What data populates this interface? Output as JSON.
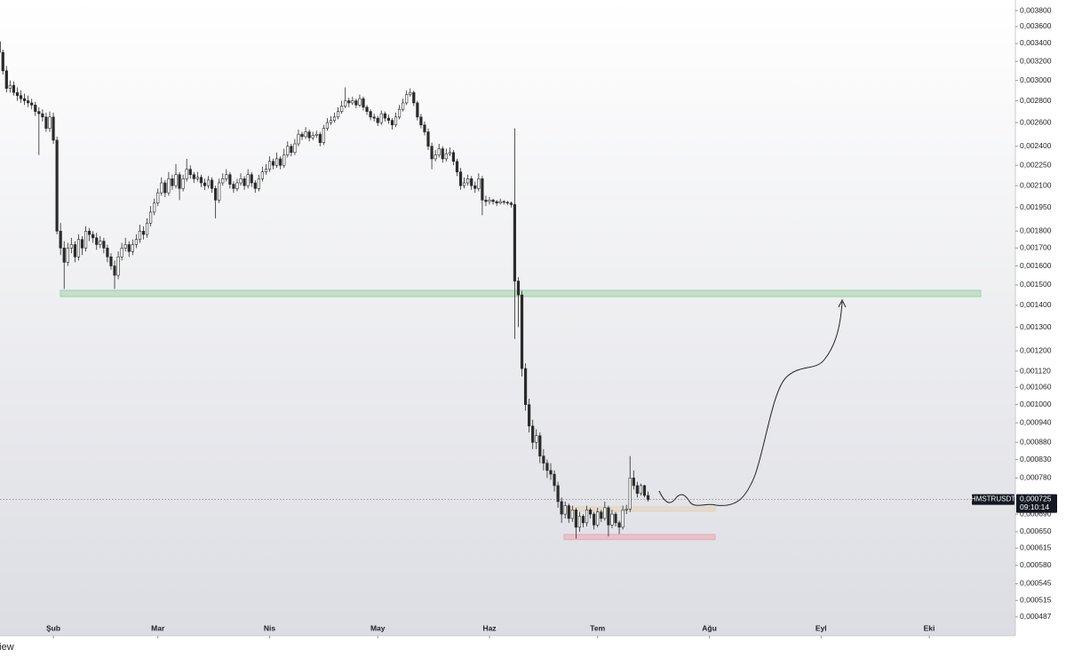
{
  "chart_data": {
    "type": "candlestick",
    "symbol": "HMSTRUSDT",
    "last_price": {
      "value": 0.000725,
      "label": "0,000725"
    },
    "countdown": "09:10:14",
    "footer_text": "View",
    "up_color": "#ffffff",
    "down_color": "#2a2a2a",
    "wick_color": "#2a2a2a",
    "log_scale": true,
    "grid": false,
    "xlim": [
      0.2,
      281.9
    ],
    "xticks": [
      {
        "value": 15,
        "label": "Şub"
      },
      {
        "value": 44,
        "label": "Mar"
      },
      {
        "value": 75,
        "label": "Nis"
      },
      {
        "value": 105,
        "label": "May"
      },
      {
        "value": 136,
        "label": "Haz"
      },
      {
        "value": 166,
        "label": "Tem"
      },
      {
        "value": 197,
        "label": "Ağu"
      },
      {
        "value": 228,
        "label": "Eyl"
      },
      {
        "value": 258,
        "label": "Eki"
      }
    ],
    "ylim": [
      0.000457,
      0.00394
    ],
    "yticks": [
      {
        "value": 0.0038,
        "label": "0,003800"
      },
      {
        "value": 0.0036,
        "label": "0,003600"
      },
      {
        "value": 0.0034,
        "label": "0,003400"
      },
      {
        "value": 0.0032,
        "label": "0,003200"
      },
      {
        "value": 0.003,
        "label": "0,003000"
      },
      {
        "value": 0.0028,
        "label": "0,002800"
      },
      {
        "value": 0.0026,
        "label": "0,002600"
      },
      {
        "value": 0.0024,
        "label": "0,002400"
      },
      {
        "value": 0.00225,
        "label": "0,002250"
      },
      {
        "value": 0.0021,
        "label": "0,002100"
      },
      {
        "value": 0.00195,
        "label": "0,001950"
      },
      {
        "value": 0.0018,
        "label": "0,001800"
      },
      {
        "value": 0.0017,
        "label": "0,001700"
      },
      {
        "value": 0.0016,
        "label": "0,001600"
      },
      {
        "value": 0.0015,
        "label": "0,001500"
      },
      {
        "value": 0.0014,
        "label": "0,001400"
      },
      {
        "value": 0.0013,
        "label": "0,001300"
      },
      {
        "value": 0.0012,
        "label": "0,001200"
      },
      {
        "value": 0.00112,
        "label": "0,001120"
      },
      {
        "value": 0.00106,
        "label": "0,001060"
      },
      {
        "value": 0.001,
        "label": "0,001000"
      },
      {
        "value": 0.00094,
        "label": "0,000940"
      },
      {
        "value": 0.00088,
        "label": "0,000880"
      },
      {
        "value": 0.00083,
        "label": "0,000830"
      },
      {
        "value": 0.00078,
        "label": "0,000780"
      },
      {
        "value": 0.00069,
        "label": "0,000690"
      },
      {
        "value": 0.00065,
        "label": "0,000650"
      },
      {
        "value": 0.000615,
        "label": "0,000615"
      },
      {
        "value": 0.00058,
        "label": "0,000580"
      },
      {
        "value": 0.000545,
        "label": "0,000545"
      },
      {
        "value": 0.000515,
        "label": "0,000515"
      },
      {
        "value": 0.000487,
        "label": "0,000487"
      }
    ],
    "zones": [
      {
        "low": 0.001442,
        "high": 0.001473,
        "color": "#9fd3a8"
      },
      {
        "low": 0.000697,
        "high": 0.000707,
        "color": "#e3d3b8"
      },
      {
        "low": 0.000633,
        "high": 0.000644,
        "color": "#e9a9b4"
      }
    ],
    "ohlc": [
      [
        0.00342,
        0.00346,
        0.00326,
        0.0033
      ],
      [
        0.0033,
        0.00333,
        0.00306,
        0.0031
      ],
      [
        0.0031,
        0.00315,
        0.00288,
        0.00292
      ],
      [
        0.00292,
        0.003,
        0.00288,
        0.00295
      ],
      [
        0.00295,
        0.00299,
        0.00285,
        0.00288
      ],
      [
        0.00288,
        0.00293,
        0.0028,
        0.00285
      ],
      [
        0.00285,
        0.0029,
        0.00278,
        0.00282
      ],
      [
        0.00282,
        0.00287,
        0.00276,
        0.0028
      ],
      [
        0.0028,
        0.00285,
        0.00274,
        0.00278
      ],
      [
        0.00278,
        0.00282,
        0.00272,
        0.00276
      ],
      [
        0.00276,
        0.00279,
        0.00266,
        0.0027
      ],
      [
        0.0027,
        0.00274,
        0.00233,
        0.00268
      ],
      [
        0.00268,
        0.00272,
        0.00261,
        0.00265
      ],
      [
        0.00265,
        0.00269,
        0.00252,
        0.00255
      ],
      [
        0.00255,
        0.0027,
        0.00252,
        0.00265
      ],
      [
        0.00265,
        0.00269,
        0.00242,
        0.00245
      ],
      [
        0.00245,
        0.00248,
        0.00178,
        0.0018
      ],
      [
        0.0018,
        0.00185,
        0.00166,
        0.0017
      ],
      [
        0.0017,
        0.00174,
        0.00148,
        0.00162
      ],
      [
        0.00162,
        0.00173,
        0.0016,
        0.0017
      ],
      [
        0.0017,
        0.00176,
        0.00167,
        0.00172
      ],
      [
        0.00172,
        0.00174,
        0.00162,
        0.00165
      ],
      [
        0.00165,
        0.00178,
        0.00163,
        0.00175
      ],
      [
        0.00175,
        0.00177,
        0.00166,
        0.0017
      ],
      [
        0.0017,
        0.00183,
        0.00168,
        0.0018
      ],
      [
        0.0018,
        0.00182,
        0.00174,
        0.00178
      ],
      [
        0.00178,
        0.0018,
        0.00173,
        0.00176
      ],
      [
        0.00176,
        0.00179,
        0.00169,
        0.00172
      ],
      [
        0.00172,
        0.00177,
        0.0017,
        0.00174
      ],
      [
        0.00174,
        0.00176,
        0.00167,
        0.0017
      ],
      [
        0.0017,
        0.00172,
        0.00162,
        0.00165
      ],
      [
        0.00165,
        0.00167,
        0.00158,
        0.0016
      ],
      [
        0.0016,
        0.00163,
        0.00148,
        0.00155
      ],
      [
        0.00155,
        0.00168,
        0.00153,
        0.00165
      ],
      [
        0.00165,
        0.00173,
        0.00163,
        0.0017
      ],
      [
        0.0017,
        0.00176,
        0.00168,
        0.00172
      ],
      [
        0.00172,
        0.00174,
        0.00165,
        0.00168
      ],
      [
        0.00168,
        0.00175,
        0.00166,
        0.00172
      ],
      [
        0.00172,
        0.00178,
        0.0017,
        0.00175
      ],
      [
        0.00175,
        0.00184,
        0.00173,
        0.0018
      ],
      [
        0.0018,
        0.00183,
        0.00175,
        0.00178
      ],
      [
        0.00178,
        0.00188,
        0.00176,
        0.00185
      ],
      [
        0.00185,
        0.00196,
        0.00183,
        0.00192
      ],
      [
        0.00192,
        0.00201,
        0.0019,
        0.00198
      ],
      [
        0.00198,
        0.00208,
        0.00196,
        0.00205
      ],
      [
        0.00205,
        0.00216,
        0.00203,
        0.00212
      ],
      [
        0.00212,
        0.00214,
        0.00202,
        0.00205
      ],
      [
        0.00205,
        0.0022,
        0.00203,
        0.00215
      ],
      [
        0.00215,
        0.00218,
        0.00207,
        0.0021
      ],
      [
        0.0021,
        0.00226,
        0.00208,
        0.00218
      ],
      [
        0.00218,
        0.0022,
        0.002,
        0.00208
      ],
      [
        0.00208,
        0.00218,
        0.00206,
        0.00215
      ],
      [
        0.00215,
        0.0023,
        0.00213,
        0.00222
      ],
      [
        0.00222,
        0.00225,
        0.00215,
        0.00218
      ],
      [
        0.00218,
        0.0022,
        0.00212,
        0.00215
      ],
      [
        0.00215,
        0.0022,
        0.00213,
        0.00216
      ],
      [
        0.00216,
        0.00218,
        0.00209,
        0.00212
      ],
      [
        0.00212,
        0.00215,
        0.00207,
        0.0021
      ],
      [
        0.0021,
        0.00217,
        0.00208,
        0.00214
      ],
      [
        0.00214,
        0.00216,
        0.00205,
        0.00208
      ],
      [
        0.00208,
        0.0021,
        0.00188,
        0.002
      ],
      [
        0.002,
        0.00215,
        0.00198,
        0.00212
      ],
      [
        0.00212,
        0.00219,
        0.0021,
        0.00215
      ],
      [
        0.00215,
        0.00222,
        0.00213,
        0.00218
      ],
      [
        0.00218,
        0.0022,
        0.00208,
        0.00211
      ],
      [
        0.00211,
        0.00213,
        0.00205,
        0.00208
      ],
      [
        0.00208,
        0.00215,
        0.00206,
        0.00212
      ],
      [
        0.00212,
        0.00219,
        0.0021,
        0.00215
      ],
      [
        0.00215,
        0.00217,
        0.00207,
        0.0021
      ],
      [
        0.0021,
        0.00222,
        0.00208,
        0.00218
      ],
      [
        0.00218,
        0.0022,
        0.00209,
        0.00212
      ],
      [
        0.00212,
        0.00214,
        0.00205,
        0.00208
      ],
      [
        0.00208,
        0.00218,
        0.00206,
        0.00215
      ],
      [
        0.00215,
        0.00224,
        0.00213,
        0.0022
      ],
      [
        0.0022,
        0.00226,
        0.00218,
        0.00222
      ],
      [
        0.00222,
        0.00232,
        0.0022,
        0.00228
      ],
      [
        0.00228,
        0.0023,
        0.00222,
        0.00225
      ],
      [
        0.00225,
        0.00235,
        0.00223,
        0.0023
      ],
      [
        0.0023,
        0.00232,
        0.00222,
        0.00225
      ],
      [
        0.00225,
        0.00238,
        0.00223,
        0.00233
      ],
      [
        0.00233,
        0.00244,
        0.00231,
        0.0024
      ],
      [
        0.0024,
        0.00242,
        0.00232,
        0.00235
      ],
      [
        0.00235,
        0.00246,
        0.00233,
        0.00242
      ],
      [
        0.00242,
        0.00254,
        0.0024,
        0.0025
      ],
      [
        0.0025,
        0.00252,
        0.00245,
        0.00248
      ],
      [
        0.00248,
        0.00256,
        0.00246,
        0.00252
      ],
      [
        0.00252,
        0.00254,
        0.00244,
        0.00247
      ],
      [
        0.00247,
        0.00252,
        0.00245,
        0.00249
      ],
      [
        0.00249,
        0.00253,
        0.00247,
        0.0025
      ],
      [
        0.0025,
        0.00252,
        0.0024,
        0.00243
      ],
      [
        0.00243,
        0.00258,
        0.00241,
        0.00255
      ],
      [
        0.00255,
        0.00264,
        0.00253,
        0.0026
      ],
      [
        0.0026,
        0.00266,
        0.00258,
        0.00262
      ],
      [
        0.00262,
        0.00269,
        0.0026,
        0.00265
      ],
      [
        0.00265,
        0.00274,
        0.00263,
        0.0027
      ],
      [
        0.0027,
        0.0028,
        0.00268,
        0.00275
      ],
      [
        0.00275,
        0.00293,
        0.00273,
        0.0028
      ],
      [
        0.0028,
        0.00283,
        0.00274,
        0.00278
      ],
      [
        0.00278,
        0.00284,
        0.00276,
        0.0028
      ],
      [
        0.0028,
        0.00282,
        0.00273,
        0.00276
      ],
      [
        0.00276,
        0.00286,
        0.00274,
        0.00282
      ],
      [
        0.00282,
        0.00284,
        0.00271,
        0.00274
      ],
      [
        0.00274,
        0.00276,
        0.00267,
        0.0027
      ],
      [
        0.0027,
        0.00272,
        0.00262,
        0.00265
      ],
      [
        0.00265,
        0.00268,
        0.00261,
        0.00264
      ],
      [
        0.00264,
        0.00266,
        0.00257,
        0.0026
      ],
      [
        0.0026,
        0.00271,
        0.00258,
        0.00268
      ],
      [
        0.00268,
        0.0027,
        0.00261,
        0.00264
      ],
      [
        0.00264,
        0.00267,
        0.00259,
        0.00262
      ],
      [
        0.00262,
        0.00264,
        0.00254,
        0.00258
      ],
      [
        0.00258,
        0.00269,
        0.00256,
        0.00265
      ],
      [
        0.00265,
        0.00276,
        0.00263,
        0.00272
      ],
      [
        0.00272,
        0.00282,
        0.0027,
        0.00278
      ],
      [
        0.00278,
        0.0029,
        0.00276,
        0.00286
      ],
      [
        0.00286,
        0.00292,
        0.00284,
        0.00288
      ],
      [
        0.00288,
        0.0029,
        0.00275,
        0.00278
      ],
      [
        0.00278,
        0.0028,
        0.00262,
        0.00265
      ],
      [
        0.00265,
        0.00268,
        0.00255,
        0.00258
      ],
      [
        0.00258,
        0.00261,
        0.00249,
        0.00252
      ],
      [
        0.00252,
        0.00255,
        0.00237,
        0.0024
      ],
      [
        0.0024,
        0.00243,
        0.00222,
        0.0023
      ],
      [
        0.0023,
        0.00237,
        0.00228,
        0.00233
      ],
      [
        0.00233,
        0.00242,
        0.00231,
        0.00238
      ],
      [
        0.00238,
        0.0024,
        0.00227,
        0.0023
      ],
      [
        0.0023,
        0.00238,
        0.00228,
        0.00234
      ],
      [
        0.00234,
        0.00239,
        0.00232,
        0.00235
      ],
      [
        0.00235,
        0.00237,
        0.00225,
        0.00228
      ],
      [
        0.00228,
        0.0023,
        0.00217,
        0.0022
      ],
      [
        0.0022,
        0.00223,
        0.00207,
        0.0021
      ],
      [
        0.0021,
        0.00216,
        0.00208,
        0.00212
      ],
      [
        0.00212,
        0.00218,
        0.0021,
        0.00215
      ],
      [
        0.00215,
        0.00217,
        0.00207,
        0.0021
      ],
      [
        0.0021,
        0.00213,
        0.00205,
        0.00208
      ],
      [
        0.00208,
        0.00219,
        0.00206,
        0.00215
      ],
      [
        0.00215,
        0.00217,
        0.0019,
        0.002
      ],
      [
        0.002,
        0.00203,
        0.00196,
        0.00199
      ],
      [
        0.00199,
        0.00202,
        0.00197,
        0.002
      ],
      [
        0.002,
        0.00201,
        0.00197,
        0.00199
      ],
      [
        0.00199,
        0.002,
        0.00196,
        0.00198
      ],
      [
        0.00198,
        0.00201,
        0.00197,
        0.00199
      ],
      [
        0.00199,
        0.002,
        0.00197,
        0.001985
      ],
      [
        0.001985,
        0.001995,
        0.001965,
        0.00198
      ],
      [
        0.00198,
        0.00199,
        0.00195,
        0.00197
      ],
      [
        0.00197,
        0.00255,
        0.00125,
        0.00152
      ],
      [
        0.00152,
        0.00154,
        0.0013,
        0.00145
      ],
      [
        0.00145,
        0.00147,
        0.0011,
        0.00113
      ],
      [
        0.00113,
        0.00115,
        0.00098,
        0.001
      ],
      [
        0.001,
        0.00102,
        0.00091,
        0.00093
      ],
      [
        0.00093,
        0.00095,
        0.00086,
        0.00088
      ],
      [
        0.00088,
        0.00092,
        0.00086,
        0.0009
      ],
      [
        0.0009,
        0.00091,
        0.00082,
        0.00084
      ],
      [
        0.00084,
        0.00086,
        0.0008,
        0.00082
      ],
      [
        0.00082,
        0.00083,
        0.00078,
        0.0008
      ],
      [
        0.0008,
        0.00082,
        0.000775,
        0.00079
      ],
      [
        0.00079,
        0.0008,
        0.000745,
        0.00076
      ],
      [
        0.00076,
        0.00077,
        0.000705,
        0.00072
      ],
      [
        0.00072,
        0.00073,
        0.00067,
        0.00069
      ],
      [
        0.00069,
        0.00072,
        0.00068,
        0.00071
      ],
      [
        0.00071,
        0.000715,
        0.00067,
        0.00068
      ],
      [
        0.00068,
        0.00071,
        0.000672,
        0.0007
      ],
      [
        0.0007,
        0.000705,
        0.000635,
        0.00066
      ],
      [
        0.00066,
        0.000695,
        0.00065,
        0.000685
      ],
      [
        0.000685,
        0.00069,
        0.00066,
        0.00067
      ],
      [
        0.00067,
        0.00071,
        0.000662,
        0.0007
      ],
      [
        0.0007,
        0.000705,
        0.00068,
        0.00069
      ],
      [
        0.00069,
        0.000695,
        0.000655,
        0.000665
      ],
      [
        0.000665,
        0.000705,
        0.00066,
        0.000695
      ],
      [
        0.000695,
        0.0007,
        0.000672,
        0.00068
      ],
      [
        0.00068,
        0.00072,
        0.000675,
        0.000705
      ],
      [
        0.000705,
        0.00071,
        0.00064,
        0.000665
      ],
      [
        0.000665,
        0.0007,
        0.000658,
        0.00069
      ],
      [
        0.00069,
        0.000695,
        0.000662,
        0.00067
      ],
      [
        0.00067,
        0.000675,
        0.000645,
        0.00066
      ],
      [
        0.00066,
        0.00071,
        0.000655,
        0.0007
      ],
      [
        0.0007,
        0.000712,
        0.00069,
        0.000702
      ],
      [
        0.000702,
        0.00084,
        0.000695,
        0.00078
      ],
      [
        0.00078,
        0.0008,
        0.00075,
        0.00076
      ],
      [
        0.00076,
        0.00077,
        0.00073,
        0.00074
      ],
      [
        0.00074,
        0.000765,
        0.000735,
        0.00076
      ],
      [
        0.00076,
        0.000762,
        0.00073,
        0.000735
      ],
      [
        0.000735,
        0.000745,
        0.00072,
        0.000725
      ]
    ]
  }
}
